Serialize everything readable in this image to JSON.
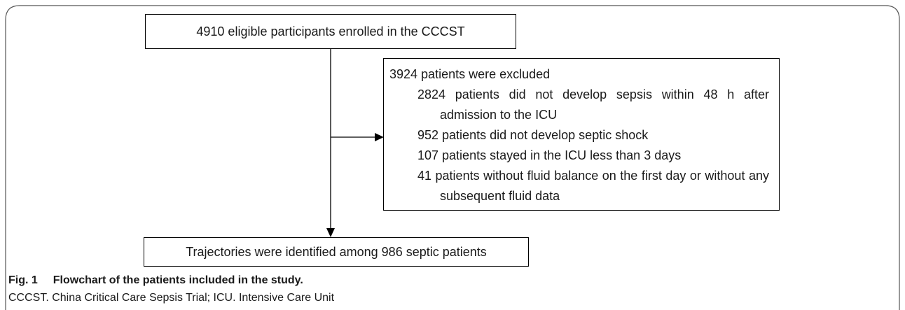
{
  "nodes": [
    {
      "label": "4910 eligible participants enrolled in the CCCST"
    },
    {
      "label": "3924 patients were excluded",
      "items": [
        "2824 patients did not develop sepsis within 48 h after admission to the ICU",
        "952 patients did not develop septic shock",
        "107 patients stayed in the ICU less than 3 days",
        "41 patients without fluid balance on the first day or without any subsequent fluid data"
      ]
    },
    {
      "label": "Trajectories were identified among 986 septic patients"
    }
  ],
  "caption": {
    "label": "Fig. 1",
    "title": "Flowchart of the patients included in the study.",
    "note": "CCCST. China Critical Care Sepsis Trial; ICU. Intensive Care Unit"
  }
}
